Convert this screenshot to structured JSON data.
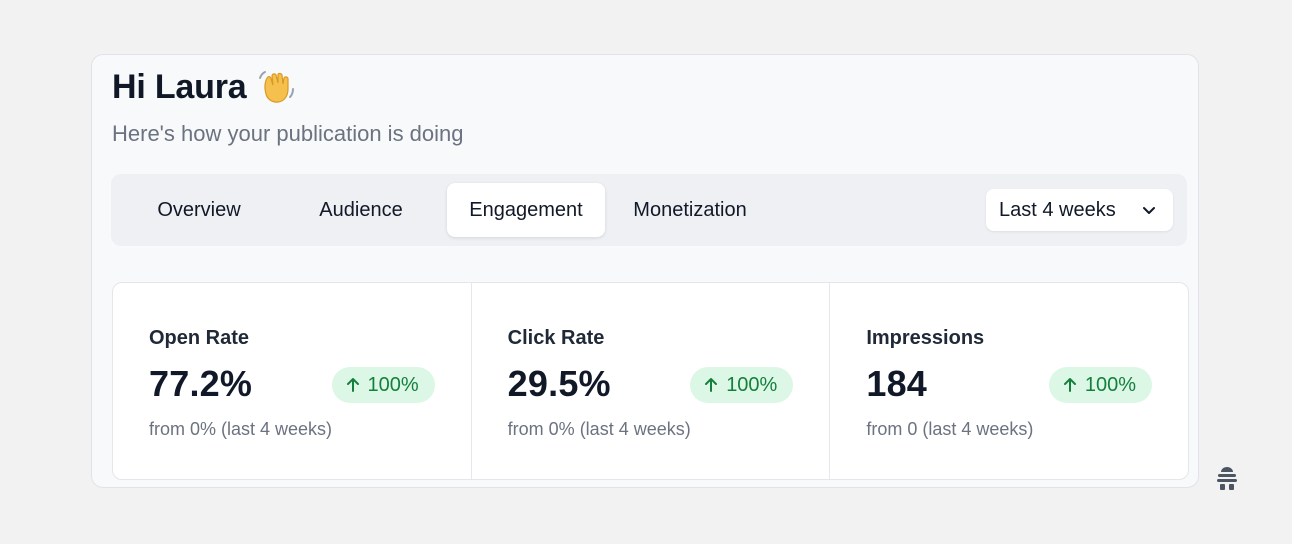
{
  "header": {
    "greeting": "Hi Laura",
    "wave_icon": "waving-hand-icon",
    "subtitle": "Here's how your publication is doing"
  },
  "tabs": [
    {
      "label": "Overview",
      "active": false
    },
    {
      "label": "Audience",
      "active": false
    },
    {
      "label": "Engagement",
      "active": true
    },
    {
      "label": "Monetization",
      "active": false
    }
  ],
  "date_range": {
    "selected": "Last 4 weeks",
    "icon": "chevron-down-icon"
  },
  "stats": [
    {
      "label": "Open Rate",
      "value": "77.2%",
      "change": "100%",
      "direction": "up",
      "sub": "from 0% (last 4 weeks)"
    },
    {
      "label": "Click Rate",
      "value": "29.5%",
      "change": "100%",
      "direction": "up",
      "sub": "from 0% (last 4 weeks)"
    },
    {
      "label": "Impressions",
      "value": "184",
      "change": "100%",
      "direction": "up",
      "sub": "from 0 (last 4 weeks)"
    }
  ],
  "colors": {
    "accent_green": "#15803d",
    "badge_bg": "#dcf7e6",
    "text_primary": "#111827",
    "text_muted": "#6b7280"
  },
  "corner": {
    "icon": "hive-icon"
  }
}
